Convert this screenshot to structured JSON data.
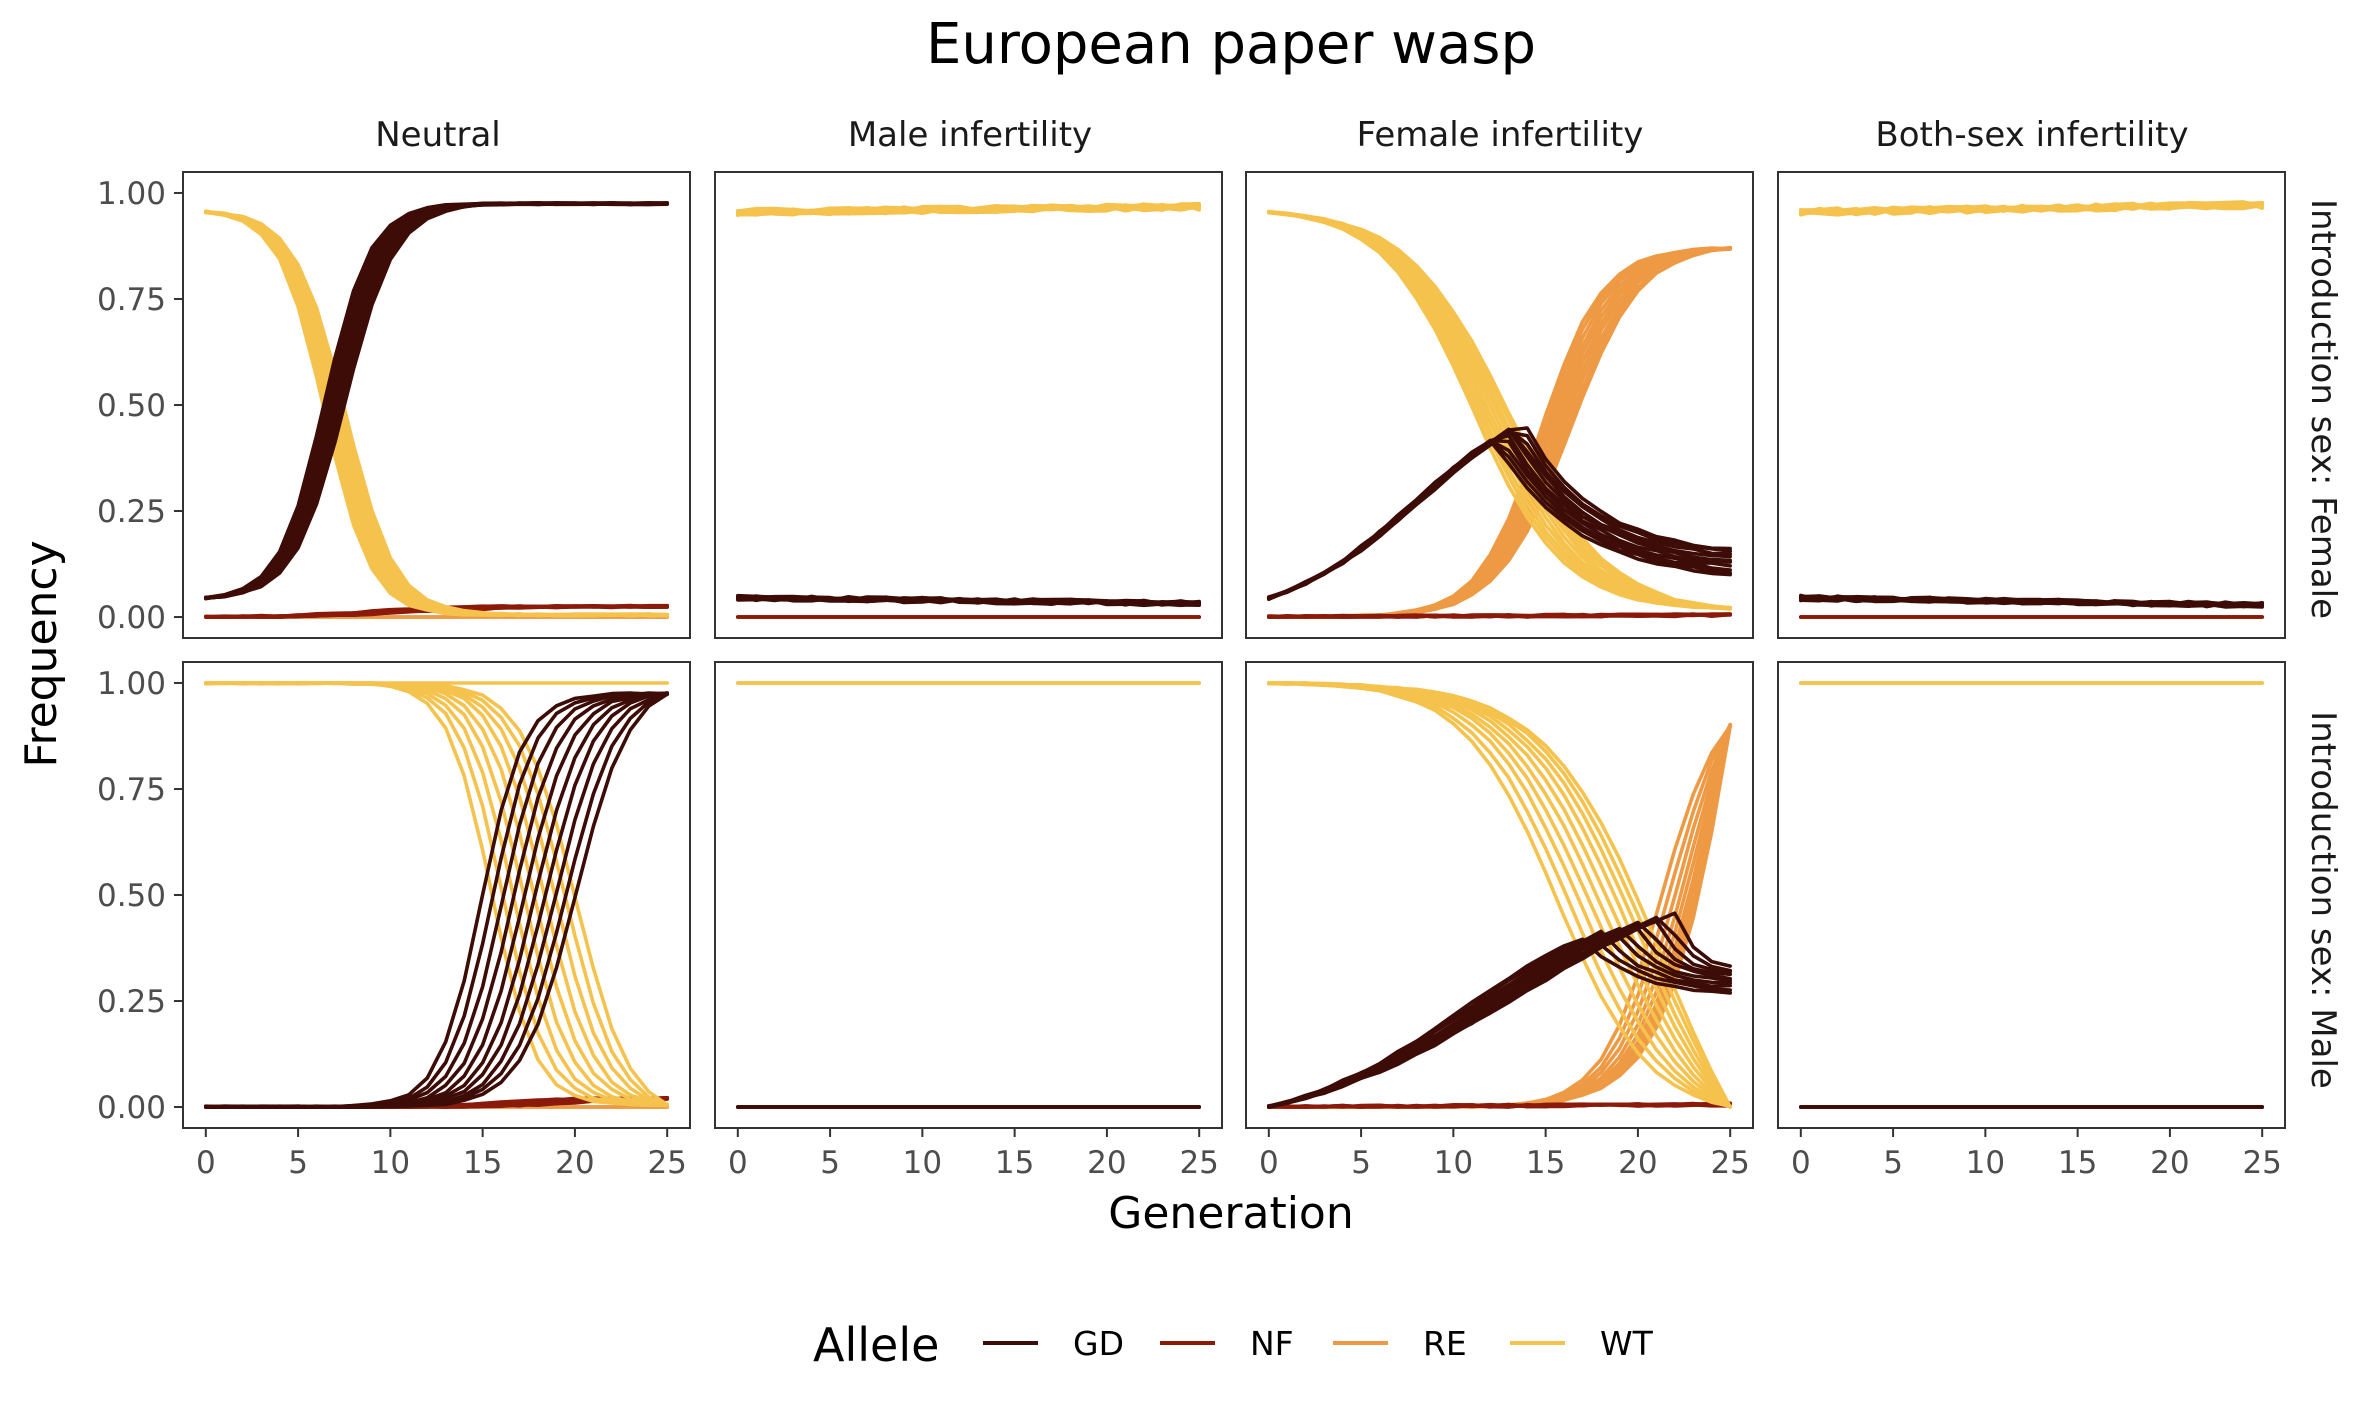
{
  "chart_data": {
    "type": "line",
    "title": "European paper wasp",
    "xlabel": "Generation",
    "ylabel": "Frequency",
    "x_ticks": [
      0,
      5,
      10,
      15,
      20,
      25
    ],
    "y_ticks": [
      "0.00",
      "0.25",
      "0.50",
      "0.75",
      "1.00"
    ],
    "xlim": [
      0,
      25
    ],
    "ylim": [
      0,
      1
    ],
    "grid": false,
    "legend": {
      "title": "Allele",
      "placement": "bottom",
      "entries": [
        {
          "name": "GD",
          "color": "#3d0c06"
        },
        {
          "name": "NF",
          "color": "#8b1a0a"
        },
        {
          "name": "RE",
          "color": "#ee9a45"
        },
        {
          "name": "WT",
          "color": "#f5c34d"
        }
      ]
    },
    "columns": [
      "Neutral",
      "Male infertility",
      "Female infertility",
      "Both-sex infertility"
    ],
    "rows": [
      "Introduction sex: Female",
      "Introduction sex: Male"
    ],
    "panels": [
      {
        "row": 0,
        "col": 0,
        "series": [
          {
            "allele": "WT",
            "profile": "logistic",
            "start": 0.955,
            "end": 0.005,
            "mid": 7.0,
            "width": 1.3,
            "reps": 10,
            "spread_mid": 0.35,
            "spread_w": 0.06
          },
          {
            "allele": "GD",
            "profile": "logistic",
            "start": 0.045,
            "end": 0.975,
            "mid": 7.0,
            "width": 1.3,
            "reps": 10,
            "spread_mid": 0.35,
            "spread_w": 0.06
          },
          {
            "allele": "NF",
            "profile": "logistic",
            "start": 0.0,
            "end": 0.025,
            "mid": 10.0,
            "width": 2.5,
            "reps": 10,
            "spread_mid": 1.0,
            "spread_w": 0.3
          },
          {
            "allele": "RE",
            "profile": "flat",
            "start": 0.0,
            "end": 0.0,
            "reps": 3
          }
        ]
      },
      {
        "row": 0,
        "col": 1,
        "series": [
          {
            "allele": "WT",
            "profile": "flat",
            "start": 0.955,
            "end": 0.968,
            "reps": 10,
            "noise": 0.008
          },
          {
            "allele": "GD",
            "profile": "flat",
            "start": 0.045,
            "end": 0.032,
            "reps": 10,
            "noise": 0.006
          },
          {
            "allele": "NF",
            "profile": "flat",
            "start": 0.0,
            "end": 0.0,
            "reps": 3
          },
          {
            "allele": "RE",
            "profile": "flat",
            "start": 0.0,
            "end": 0.0,
            "reps": 3
          }
        ]
      },
      {
        "row": 0,
        "col": 2,
        "series": [
          {
            "allele": "WT",
            "profile": "logistic",
            "start": 0.955,
            "end": 0.02,
            "mid": 12.0,
            "width": 2.6,
            "reps": 10,
            "spread_mid": 0.6,
            "spread_w": 0.15
          },
          {
            "allele": "RE",
            "profile": "logistic",
            "start": 0.0,
            "end": 0.87,
            "mid": 15.5,
            "width": 1.8,
            "reps": 10,
            "spread_mid": 0.5,
            "spread_w": 0.12
          },
          {
            "allele": "GD",
            "profile": "hump",
            "start": 0.045,
            "peak": 0.44,
            "peak_x": 13.0,
            "end": 0.13,
            "reps": 10,
            "spread_mid": 0.5,
            "spread_w": 0.02
          },
          {
            "allele": "NF",
            "profile": "flat",
            "start": 0.0,
            "end": 0.005,
            "reps": 6,
            "noise": 0.003
          }
        ]
      },
      {
        "row": 0,
        "col": 3,
        "series": [
          {
            "allele": "WT",
            "profile": "flat",
            "start": 0.955,
            "end": 0.972,
            "reps": 10,
            "noise": 0.008
          },
          {
            "allele": "GD",
            "profile": "flat",
            "start": 0.045,
            "end": 0.028,
            "reps": 10,
            "noise": 0.006
          },
          {
            "allele": "NF",
            "profile": "flat",
            "start": 0.0,
            "end": 0.0,
            "reps": 3
          },
          {
            "allele": "RE",
            "profile": "flat",
            "start": 0.0,
            "end": 0.0,
            "reps": 3
          }
        ]
      },
      {
        "row": 1,
        "col": 0,
        "series": [
          {
            "allele": "WT",
            "profile": "logistic",
            "start": 1.0,
            "end": 0.005,
            "mid": 17.5,
            "width": 1.3,
            "reps": 10,
            "spread_mid": 1.6,
            "spread_w": 0.15,
            "one_flat": true
          },
          {
            "allele": "GD",
            "profile": "logistic",
            "start": 0.0,
            "end": 0.975,
            "mid": 17.5,
            "width": 1.3,
            "reps": 10,
            "spread_mid": 1.6,
            "spread_w": 0.15
          },
          {
            "allele": "NF",
            "profile": "logistic",
            "start": 0.0,
            "end": 0.02,
            "mid": 18.0,
            "width": 2.0,
            "reps": 10,
            "spread_mid": 1.5,
            "spread_w": 0.3
          },
          {
            "allele": "RE",
            "profile": "flat",
            "start": 0.0,
            "end": 0.0,
            "reps": 3
          }
        ]
      },
      {
        "row": 1,
        "col": 1,
        "series": [
          {
            "allele": "WT",
            "profile": "flat",
            "start": 1.0,
            "end": 1.0,
            "reps": 3
          },
          {
            "allele": "GD",
            "profile": "flat",
            "start": 0.0,
            "end": 0.0,
            "reps": 3
          },
          {
            "allele": "NF",
            "profile": "flat",
            "start": 0.0,
            "end": 0.0,
            "reps": 3
          },
          {
            "allele": "RE",
            "profile": "flat",
            "start": 0.0,
            "end": 0.0,
            "reps": 3
          }
        ]
      },
      {
        "row": 1,
        "col": 2,
        "series": [
          {
            "allele": "WT",
            "profile": "logistic",
            "start": 1.0,
            "end": 0.0,
            "mid": 18.5,
            "width": 2.8,
            "reps": 10,
            "spread_mid": 1.8,
            "spread_w": 0.3
          },
          {
            "allele": "RE",
            "profile": "logistic",
            "start": 0.0,
            "end": 0.9,
            "mid": 23.5,
            "width": 1.8,
            "reps": 10,
            "spread_mid": 1.4,
            "spread_w": 0.2
          },
          {
            "allele": "GD",
            "profile": "hump",
            "start": 0.0,
            "peak": 0.43,
            "peak_x": 19.5,
            "end": 0.3,
            "reps": 10,
            "spread_mid": 1.6,
            "spread_w": 0.03
          },
          {
            "allele": "NF",
            "profile": "flat",
            "start": 0.0,
            "end": 0.006,
            "reps": 6,
            "noise": 0.003
          }
        ]
      },
      {
        "row": 1,
        "col": 3,
        "series": [
          {
            "allele": "WT",
            "profile": "flat",
            "start": 1.0,
            "end": 1.0,
            "reps": 3
          },
          {
            "allele": "GD",
            "profile": "flat",
            "start": 0.0,
            "end": 0.0,
            "reps": 3
          },
          {
            "allele": "NF",
            "profile": "flat",
            "start": 0.0,
            "end": 0.0,
            "reps": 3
          },
          {
            "allele": "RE",
            "profile": "flat",
            "start": 0.0,
            "end": 0.0,
            "reps": 3
          }
        ]
      }
    ]
  }
}
